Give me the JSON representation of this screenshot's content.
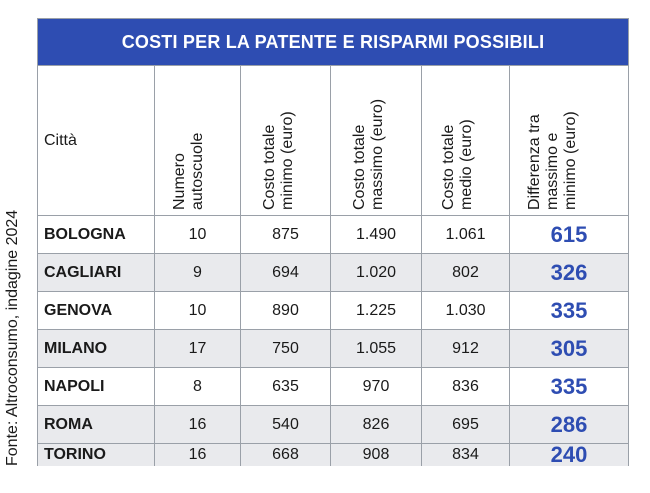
{
  "source": "Fonte: Altroconsumo, indagine 2024",
  "table": {
    "title": "COSTI PER LA PATENTE E RISPARMI POSSIBILI",
    "headers": [
      [
        "Città"
      ],
      [
        "Numero",
        "autoscuole"
      ],
      [
        "Costo totale",
        "minimo (euro)"
      ],
      [
        "Costo totale",
        "massimo (euro)"
      ],
      [
        "Costo totale",
        "medio (euro)"
      ],
      [
        "Differenza tra",
        "massimo e",
        "minimo (euro)"
      ]
    ],
    "rows": [
      [
        "BOLOGNA",
        "10",
        "875",
        "1.490",
        "1.061",
        "615"
      ],
      [
        "CAGLIARI",
        "9",
        "694",
        "1.020",
        "802",
        "326"
      ],
      [
        "GENOVA",
        "10",
        "890",
        "1.225",
        "1.030",
        "335"
      ],
      [
        "MILANO",
        "17",
        "750",
        "1.055",
        "912",
        "305"
      ],
      [
        "NAPOLI",
        "8",
        "635",
        "970",
        "836",
        "335"
      ],
      [
        "ROMA",
        "16",
        "540",
        "826",
        "695",
        "286"
      ],
      [
        "TORINO",
        "16",
        "668",
        "908",
        "834",
        "240"
      ]
    ],
    "colors": {
      "title_bg": "#2e4db2",
      "highlight": "#2e4db2",
      "alt_row": "#e9eaed"
    }
  }
}
